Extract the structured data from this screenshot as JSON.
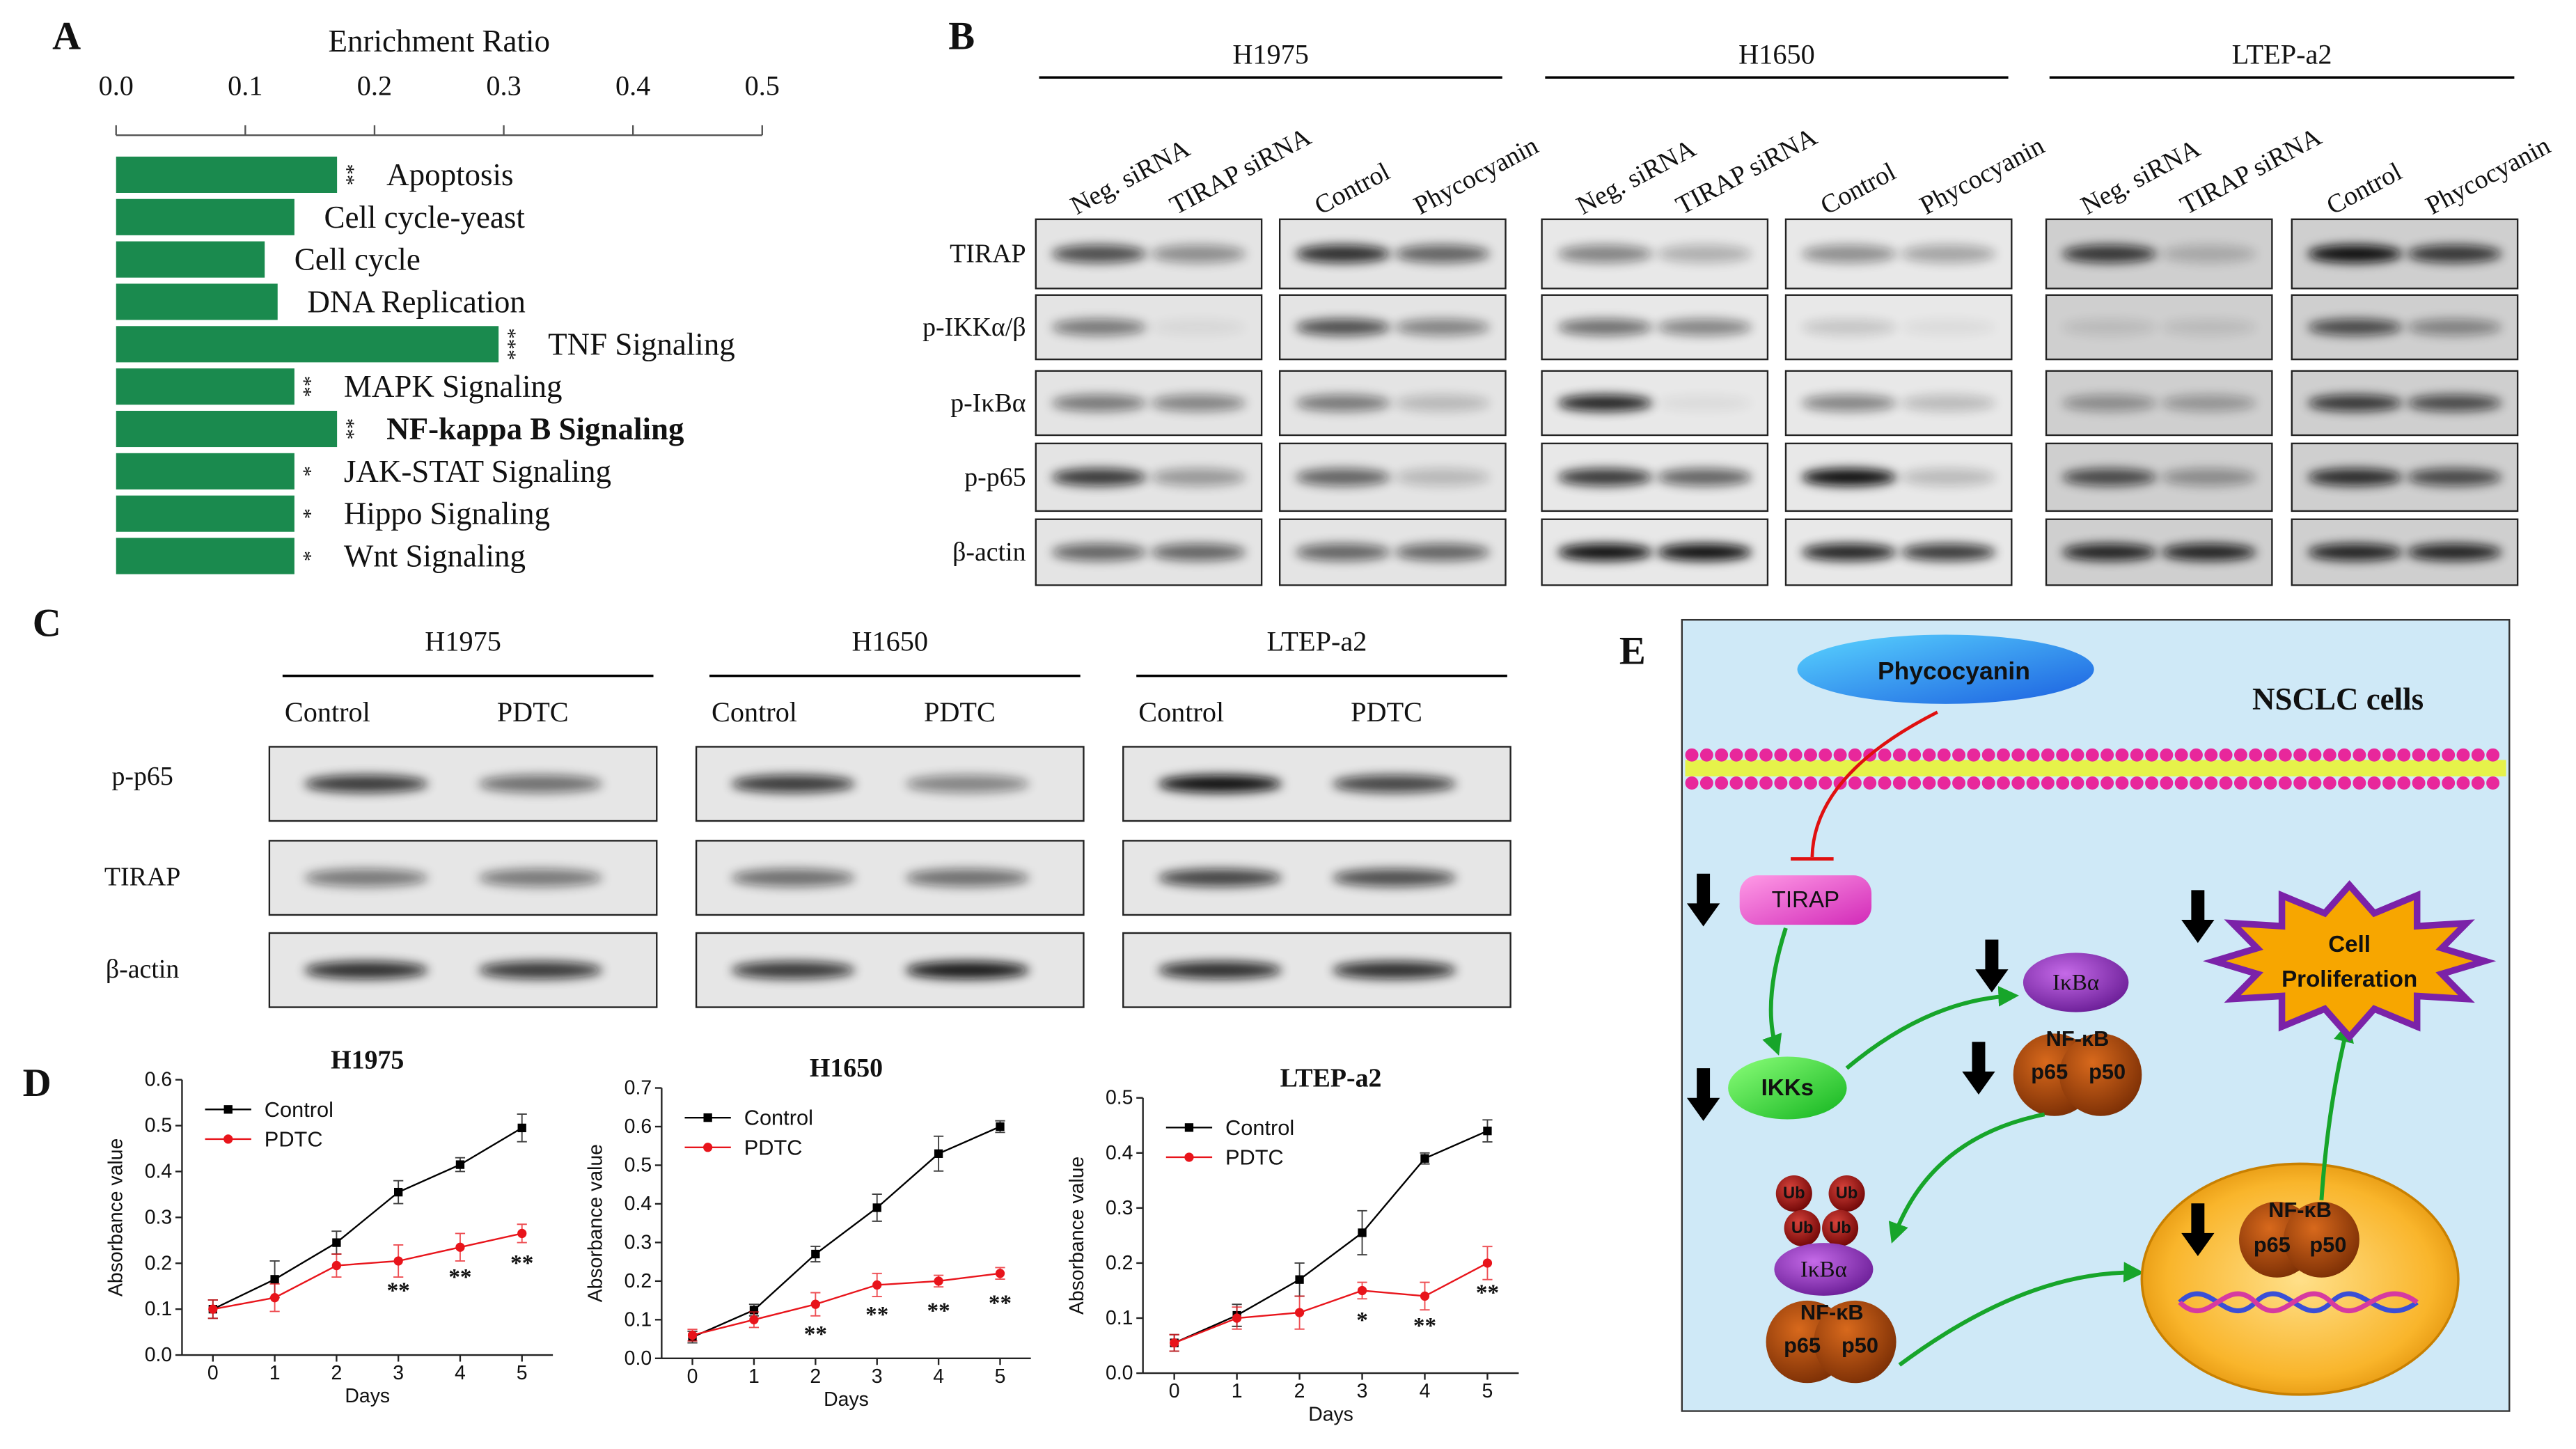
{
  "panel_labels": [
    "A",
    "B",
    "C",
    "D",
    "E"
  ],
  "chart_data": [
    {
      "type": "bar",
      "orientation": "horizontal",
      "title": "Enrichment Ratio",
      "categories": [
        "Apoptosis",
        "Cell cycle-yeast",
        "Cell cycle",
        "DNA Replication",
        "TNF Signaling",
        "MAPK Signaling",
        "NF-kappa B Signaling",
        "JAK-STAT Signaling",
        "Hippo Signaling",
        "Wnt Signaling"
      ],
      "values": [
        0.171,
        0.138,
        0.115,
        0.125,
        0.296,
        0.138,
        0.171,
        0.138,
        0.138,
        0.138
      ],
      "significance": [
        "**",
        null,
        null,
        null,
        "***",
        "**",
        "**",
        "*",
        "*",
        "*"
      ],
      "label_colors": [
        "#000000",
        "#000000",
        "#000000",
        "#000000",
        "#000000",
        "#000000",
        "#e8141b",
        "#000000",
        "#000000",
        "#000000"
      ],
      "color": "#1a8a4e",
      "xlim": [
        0,
        0.5
      ],
      "xticks": [
        {
          "value": 0,
          "label": "0.0"
        },
        0.1,
        0.2,
        0.3,
        0.4,
        0.5
      ]
    },
    {
      "type": "line",
      "title": "H1975",
      "xlabel": "Days",
      "ylabel": "Absorbance value",
      "x": [
        0,
        1,
        2,
        3,
        4,
        5
      ],
      "series": [
        {
          "name": "Control",
          "color": "#000000",
          "marker": "square",
          "values": [
            0.1,
            0.165,
            0.245,
            0.355,
            0.415,
            0.495
          ],
          "errors": [
            0.02,
            0.04,
            0.025,
            0.025,
            0.015,
            0.03
          ]
        },
        {
          "name": "PDTC",
          "color": "#e8141b",
          "marker": "circle",
          "values": [
            0.1,
            0.125,
            0.195,
            0.205,
            0.235,
            0.265
          ],
          "errors": [
            0.02,
            0.03,
            0.025,
            0.035,
            0.03,
            0.02
          ]
        }
      ],
      "annotations": [
        {
          "x": 3,
          "text": "**"
        },
        {
          "x": 4,
          "text": "**"
        },
        {
          "x": 5,
          "text": "**"
        }
      ],
      "xlim": [
        -0.5,
        5.5
      ],
      "xticks": [
        0,
        1,
        2,
        3,
        4,
        5
      ],
      "ylim": [
        0,
        0.6
      ],
      "yticks": [
        {
          "value": 0,
          "label": "0.0"
        },
        0.1,
        0.2,
        0.3,
        0.4,
        0.5,
        0.6
      ]
    },
    {
      "type": "line",
      "title": "H1650",
      "xlabel": "Days",
      "ylabel": "Absorbance value",
      "x": [
        0,
        1,
        2,
        3,
        4,
        5
      ],
      "series": [
        {
          "name": "Control",
          "color": "#000000",
          "marker": "square",
          "values": [
            0.055,
            0.125,
            0.27,
            0.39,
            0.53,
            0.6
          ],
          "errors": [
            0.015,
            0.015,
            0.02,
            0.035,
            0.045,
            0.015
          ]
        },
        {
          "name": "PDTC",
          "color": "#e8141b",
          "marker": "circle",
          "values": [
            0.06,
            0.1,
            0.14,
            0.19,
            0.2,
            0.22
          ],
          "errors": [
            0.015,
            0.02,
            0.03,
            0.03,
            0.015,
            0.015
          ]
        }
      ],
      "annotations": [
        {
          "x": 2,
          "text": "**"
        },
        {
          "x": 3,
          "text": "**"
        },
        {
          "x": 4,
          "text": "**"
        },
        {
          "x": 5,
          "text": "**"
        }
      ],
      "xlim": [
        -0.5,
        5.5
      ],
      "xticks": [
        0,
        1,
        2,
        3,
        4,
        5
      ],
      "ylim": [
        0,
        0.7
      ],
      "yticks": [
        {
          "value": 0,
          "label": "0.0"
        },
        0.1,
        0.2,
        0.3,
        0.4,
        0.5,
        0.6,
        0.7
      ]
    },
    {
      "type": "line",
      "title": "LTEP-a2",
      "xlabel": "Days",
      "ylabel": "Absorbance value",
      "x": [
        0,
        1,
        2,
        3,
        4,
        5
      ],
      "series": [
        {
          "name": "Control",
          "color": "#000000",
          "marker": "square",
          "values": [
            0.055,
            0.105,
            0.17,
            0.255,
            0.39,
            0.44
          ],
          "errors": [
            0.015,
            0.02,
            0.03,
            0.04,
            0.01,
            0.02
          ]
        },
        {
          "name": "PDTC",
          "color": "#e8141b",
          "marker": "circle",
          "values": [
            0.055,
            0.1,
            0.11,
            0.15,
            0.14,
            0.2
          ],
          "errors": [
            0.015,
            0.02,
            0.03,
            0.015,
            0.025,
            0.03
          ]
        }
      ],
      "annotations": [
        {
          "x": 3,
          "text": "*"
        },
        {
          "x": 4,
          "text": "**"
        },
        {
          "x": 5,
          "text": "**"
        }
      ],
      "xlim": [
        -0.5,
        5.5
      ],
      "xticks": [
        0,
        1,
        2,
        3,
        4,
        5
      ],
      "ylim": [
        0,
        0.5
      ],
      "yticks": [
        {
          "value": 0,
          "label": "0.0"
        },
        0.1,
        0.2,
        0.3,
        0.4,
        0.5
      ]
    }
  ],
  "blots_b": {
    "groups": [
      {
        "cell_line": "H1975",
        "lanes": [
          "Neg. siRNA",
          "TIRAP siRNA",
          "Control",
          "Phycocyanin"
        ]
      },
      {
        "cell_line": "H1650",
        "lanes": [
          "Neg. siRNA",
          "TIRAP siRNA",
          "Control",
          "Phycocyanin"
        ]
      },
      {
        "cell_line": "LTEP-a2",
        "lanes": [
          "Neg. siRNA",
          "TIRAP siRNA",
          "Control",
          "Phycocyanin"
        ]
      }
    ],
    "rows": [
      "TIRAP",
      "p-IKKα/β",
      "p-IκBα",
      "p-p65",
      "β-actin"
    ]
  },
  "blots_c": {
    "groups": [
      {
        "cell_line": "H1975",
        "lanes": [
          "Control",
          "PDTC"
        ]
      },
      {
        "cell_line": "H1650",
        "lanes": [
          "Control",
          "PDTC"
        ]
      },
      {
        "cell_line": "LTEP-a2",
        "lanes": [
          "Control",
          "PDTC"
        ]
      }
    ],
    "rows": [
      "p-p65",
      "TIRAP",
      "β-actin"
    ]
  },
  "diagram": {
    "title": "NSCLC cells",
    "phycocyanin": "Phycocyanin",
    "tirap": "TIRAP",
    "ikks": "IKKs",
    "ikba": "IκBα",
    "nfkb": "NF-κB",
    "p65": "p65",
    "p50": "p50",
    "ub": "Ub",
    "proliferation": [
      "Cell",
      "Proliferation"
    ]
  }
}
